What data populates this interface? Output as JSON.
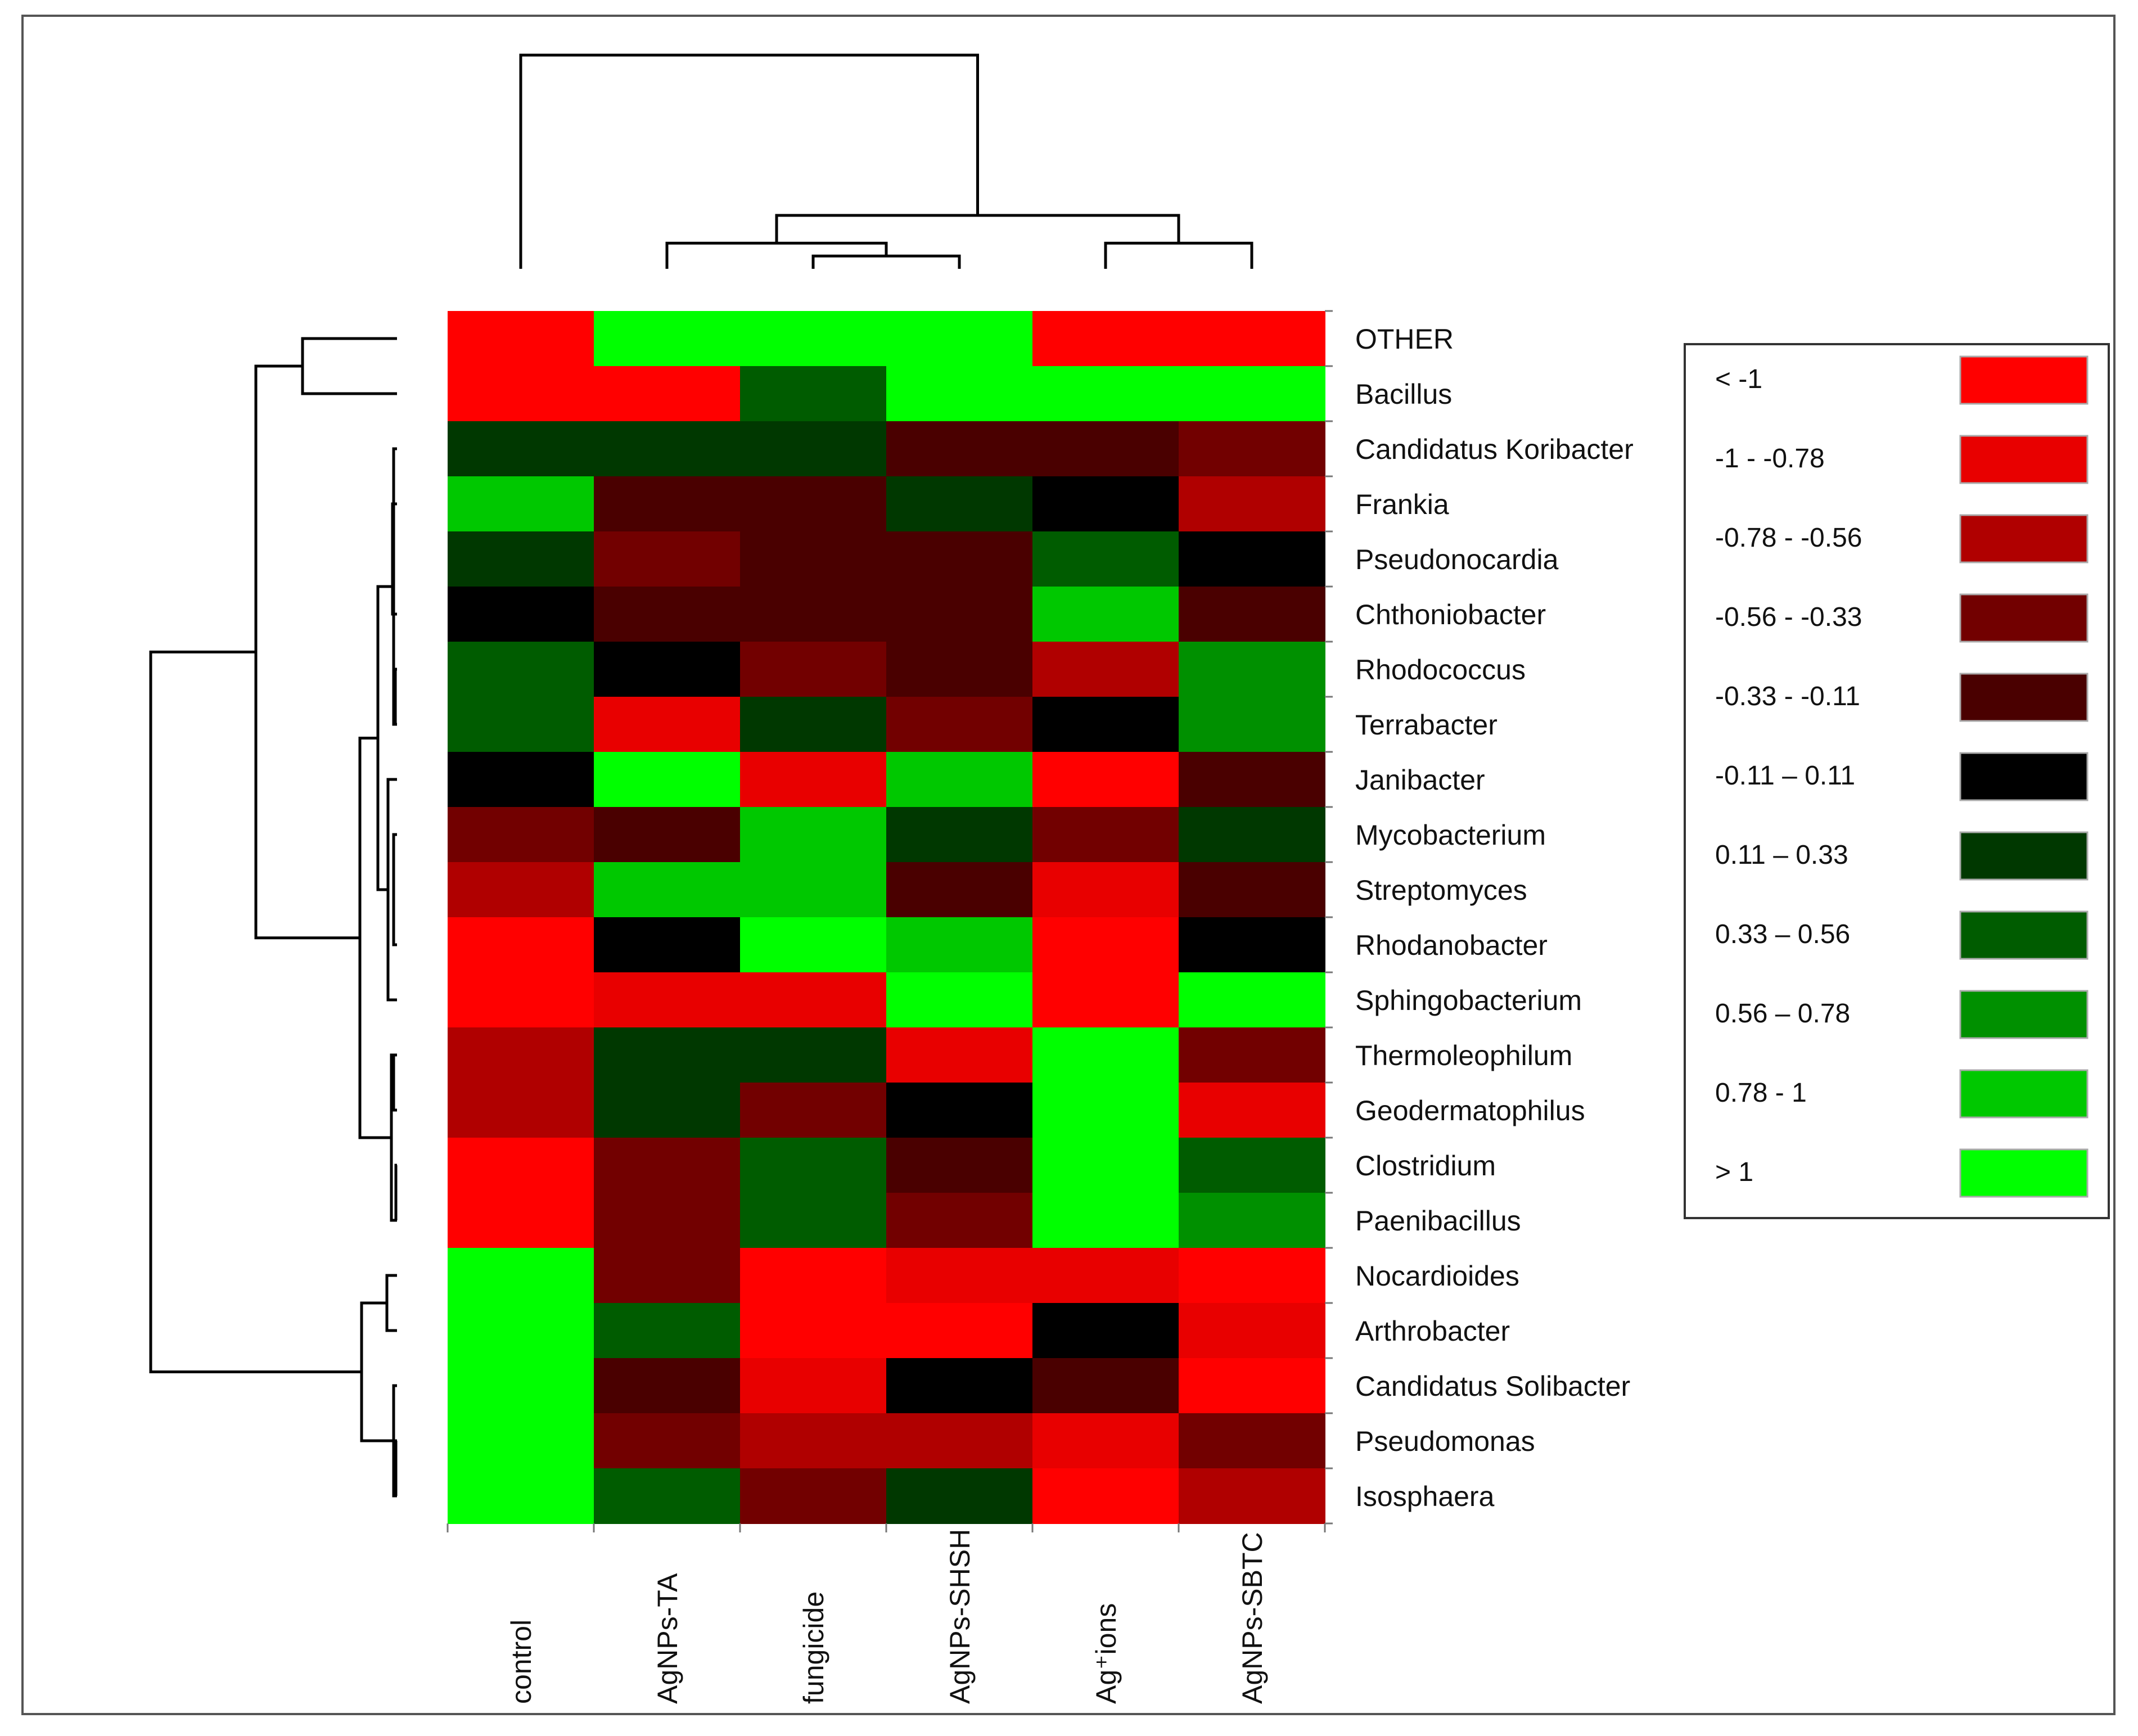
{
  "chart_data": {
    "type": "heatmap",
    "title": "",
    "columns": [
      "control",
      "AgNPs-TA",
      "fungicide",
      "AgNPs-SHSH",
      "Ag⁺ions",
      "AgNPs-SBTC"
    ],
    "rows": [
      "OTHER",
      "Bacillus",
      "Candidatus Koribacter",
      "Frankia",
      "Pseudonocardia",
      "Chthoniobacter",
      "Rhodococcus",
      "Terrabacter",
      "Janibacter",
      "Mycobacterium",
      "Streptomyces",
      "Rhodanobacter",
      "Sphingobacterium",
      "Thermoleophilum",
      "Geodermatophilus",
      "Clostridium",
      "Paenibacillus",
      "Nocardioides",
      "Arthrobacter",
      "Candidatus Solibacter",
      "Pseudomonas",
      "Isosphaera"
    ],
    "values": [
      [
        -1.2,
        1.2,
        1.2,
        1.2,
        -1.2,
        -1.2
      ],
      [
        -1.2,
        -1.2,
        0.45,
        1.2,
        1.2,
        1.2
      ],
      [
        0.2,
        0.2,
        0.2,
        -0.2,
        -0.2,
        -0.45
      ],
      [
        0.9,
        -0.2,
        -0.2,
        0.2,
        0.0,
        -0.67
      ],
      [
        0.2,
        -0.45,
        -0.2,
        -0.2,
        0.45,
        0.0
      ],
      [
        0.0,
        -0.2,
        -0.2,
        -0.2,
        0.9,
        -0.2
      ],
      [
        0.45,
        0.0,
        -0.45,
        -0.2,
        -0.67,
        0.67
      ],
      [
        0.45,
        -0.9,
        0.2,
        -0.45,
        0.0,
        0.67
      ],
      [
        0.0,
        1.2,
        -0.9,
        0.9,
        -1.2,
        -0.2
      ],
      [
        -0.45,
        -0.2,
        0.9,
        0.2,
        -0.45,
        0.2
      ],
      [
        -0.67,
        0.9,
        0.9,
        -0.2,
        -0.9,
        -0.2
      ],
      [
        -1.2,
        0.0,
        1.2,
        0.9,
        -1.2,
        0.0
      ],
      [
        -1.2,
        -0.9,
        -0.9,
        1.2,
        -1.2,
        1.2
      ],
      [
        -0.67,
        0.2,
        0.2,
        -0.9,
        1.2,
        -0.45
      ],
      [
        -0.67,
        0.2,
        -0.45,
        0.0,
        1.2,
        -0.9
      ],
      [
        -1.2,
        -0.45,
        0.45,
        -0.2,
        1.2,
        0.45
      ],
      [
        -1.2,
        -0.45,
        0.45,
        -0.45,
        1.2,
        0.67
      ],
      [
        1.2,
        -0.45,
        -1.2,
        -0.9,
        -0.9,
        -1.2
      ],
      [
        1.2,
        0.45,
        -1.2,
        -1.2,
        0.0,
        -0.9
      ],
      [
        1.2,
        -0.2,
        -0.9,
        0.0,
        -0.2,
        -1.2
      ],
      [
        1.2,
        -0.45,
        -0.67,
        -0.67,
        -0.9,
        -0.45
      ],
      [
        1.2,
        0.45,
        -0.45,
        0.2,
        -1.2,
        -0.67
      ]
    ],
    "legend": {
      "placement": "right",
      "bins": [
        {
          "label": "< -1",
          "color": "#ff0000"
        },
        {
          "label": "-1 - -0.78",
          "color": "#e80000"
        },
        {
          "label": "-0.78 - -0.56",
          "color": "#b00000"
        },
        {
          "label": "-0.56 - -0.33",
          "color": "#720000"
        },
        {
          "label": "-0.33 - -0.11",
          "color": "#4a0000"
        },
        {
          "label": "-0.11 – 0.11",
          "color": "#000000"
        },
        {
          "label": "0.11 – 0.33",
          "color": "#003800"
        },
        {
          "label": "0.33 – 0.56",
          "color": "#005c00"
        },
        {
          "label": "0.56 – 0.78",
          "color": "#009000"
        },
        {
          "label": "0.78 - 1",
          "color": "#00c800"
        },
        {
          "label": "> 1",
          "color": "#00ff00"
        }
      ],
      "thresholds": [
        -1,
        -0.78,
        -0.56,
        -0.33,
        -0.11,
        0.11,
        0.33,
        0.56,
        0.78,
        1
      ]
    },
    "column_dendrogram": [
      {
        "a": "AgNPs-SHSH",
        "b": "fungicide",
        "height": 0.06
      },
      {
        "a": "AgNPs-TA",
        "b": "fungicide+AgNPs-SHSH",
        "height": 0.12
      },
      {
        "a": "Ag⁺ions",
        "b": "AgNPs-SBTC",
        "height": 0.12
      },
      {
        "a": "AgNPs-TA+fungicide+AgNPs-SHSH",
        "b": "Ag⁺ions+AgNPs-SBTC",
        "height": 0.25
      },
      {
        "a": "control",
        "b": "rest",
        "height": 1.0
      }
    ],
    "row_dendrogram_leaf_order": [
      "OTHER",
      "Bacillus",
      "Candidatus Koribacter",
      "Frankia",
      "Pseudonocardia",
      "Chthoniobacter",
      "Rhodococcus",
      "Terrabacter",
      "Janibacter",
      "Mycobacterium",
      "Streptomyces",
      "Rhodanobacter",
      "Sphingobacterium",
      "Thermoleophilum",
      "Geodermatophilus",
      "Clostridium",
      "Paenibacillus",
      "Nocardioides",
      "Arthrobacter",
      "Candidatus Solibacter",
      "Pseudomonas",
      "Isosphaera"
    ]
  }
}
